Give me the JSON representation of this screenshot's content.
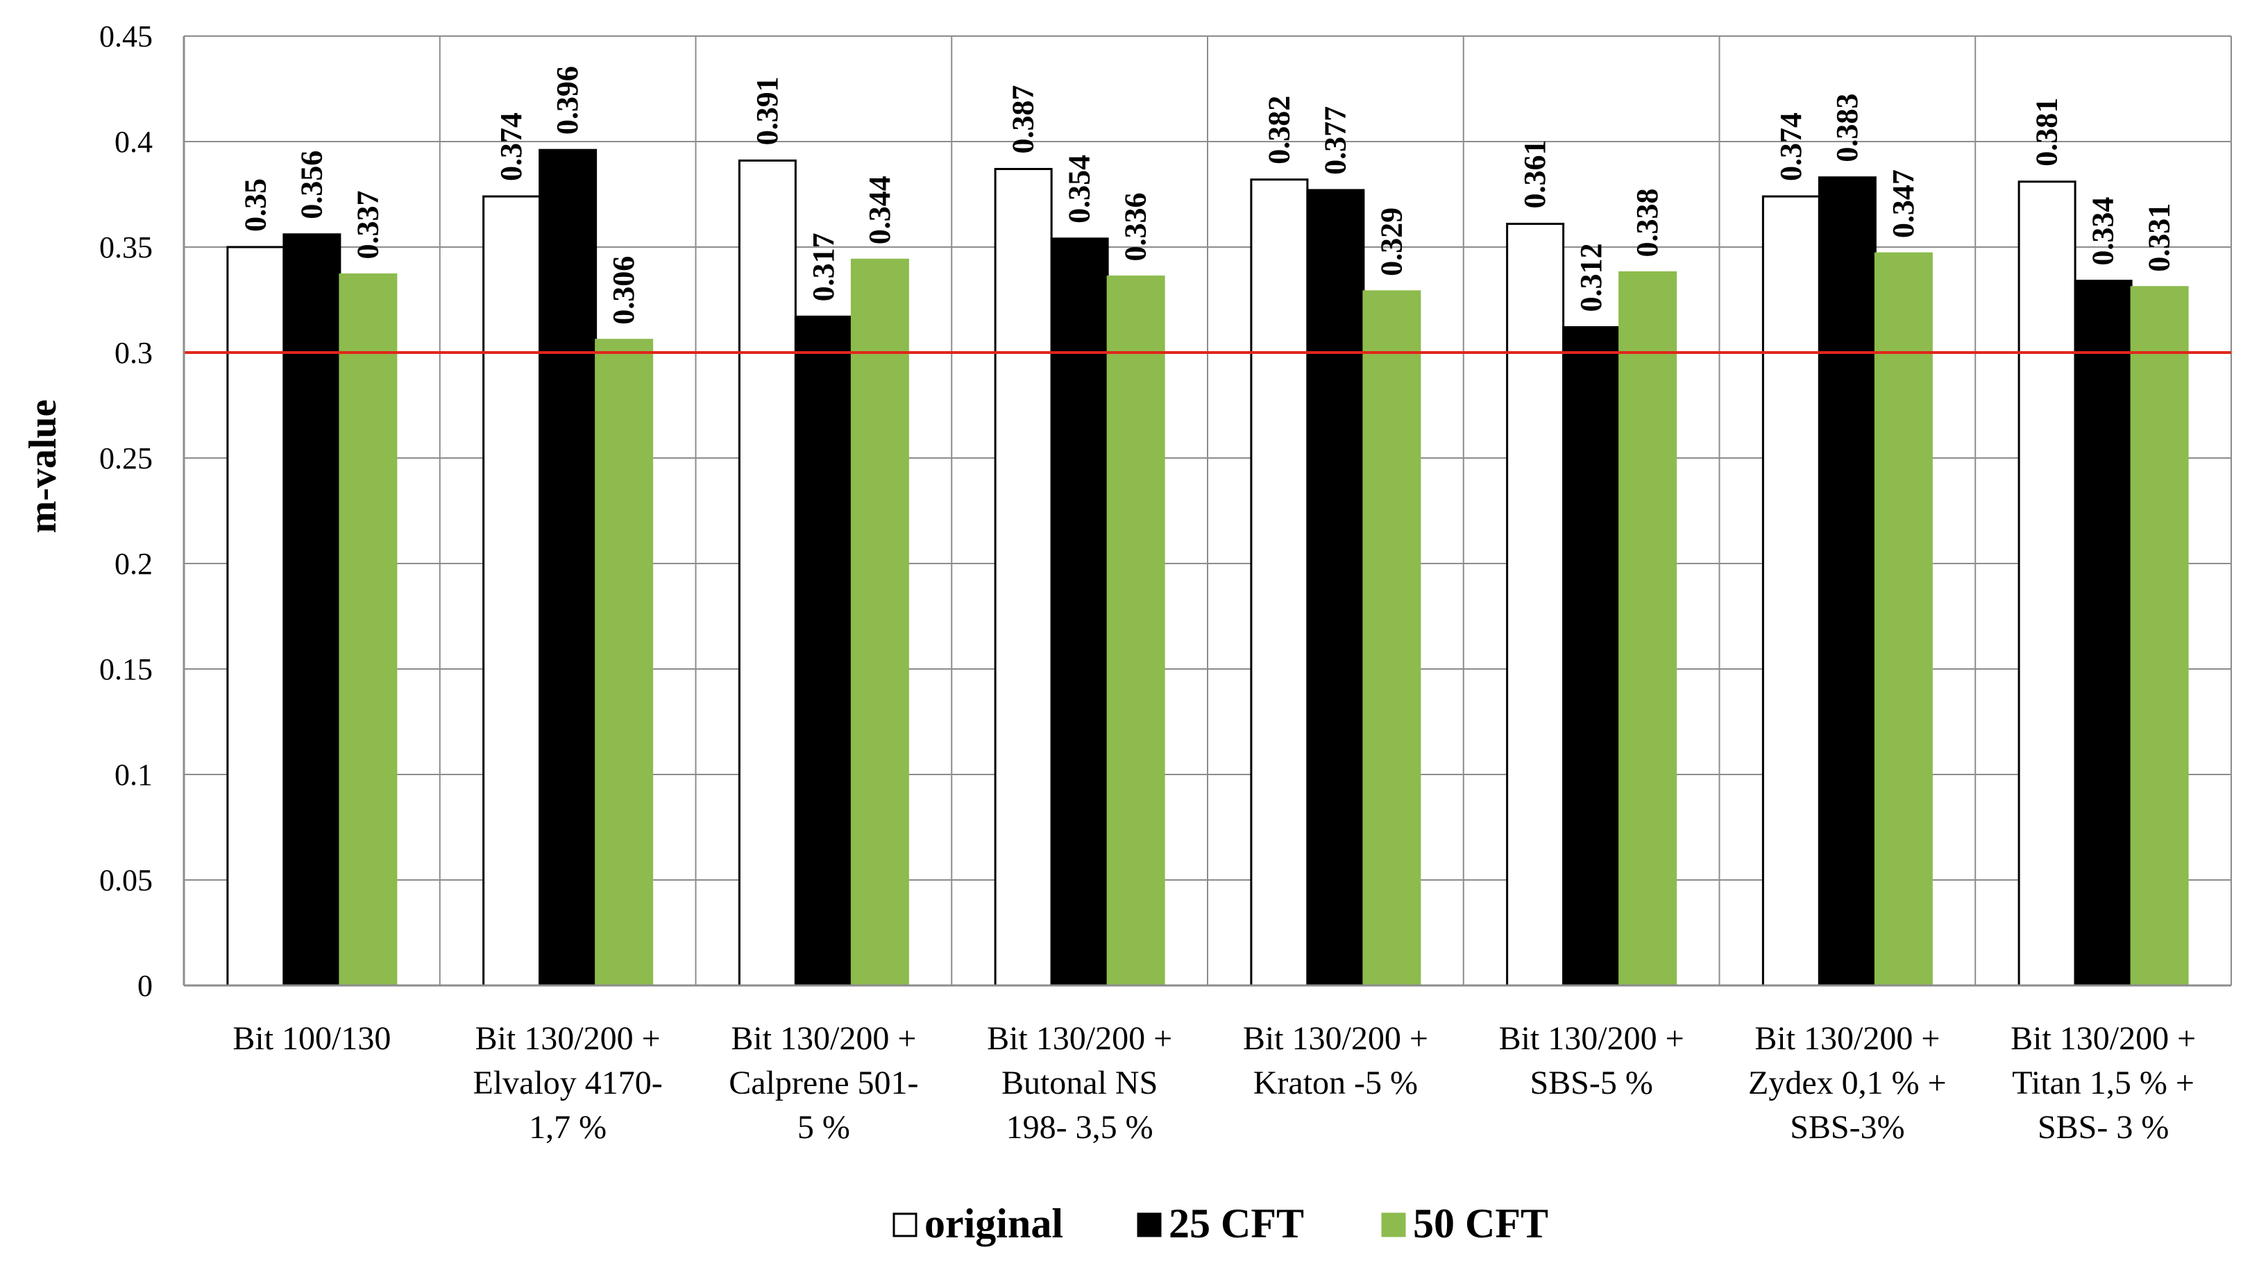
{
  "chart_data": {
    "type": "bar",
    "title": "",
    "xlabel": "",
    "ylabel": "m-value",
    "ylim": [
      0,
      0.45
    ],
    "yticks": [
      "0",
      "0.05",
      "0.1",
      "0.15",
      "0.2",
      "0.25",
      "0.3",
      "0.35",
      "0.4",
      "0.45"
    ],
    "ytick_values": [
      0,
      0.05,
      0.1,
      0.15,
      0.2,
      0.25,
      0.3,
      0.35,
      0.4,
      0.45
    ],
    "grid": true,
    "reference_line": {
      "value": 0.3,
      "color": "#e0261b"
    },
    "categories": [
      [
        "Bit 100/130"
      ],
      [
        "Bit 130/200 +",
        "Elvaloy 4170-",
        "1,7 %"
      ],
      [
        "Bit 130/200 +",
        "Calprene 501-",
        "5 %"
      ],
      [
        "Bit 130/200 +",
        "Butonal NS",
        "198-   3,5 %"
      ],
      [
        "Bit 130/200 +",
        "Kraton -5 %"
      ],
      [
        "Bit 130/200 +",
        "SBS-5 %"
      ],
      [
        "Bit 130/200 +",
        "Zydex 0,1 % +",
        "SBS-3%"
      ],
      [
        "Bit 130/200 +",
        "Titan 1,5 % +",
        "SBS- 3 %"
      ]
    ],
    "series": [
      {
        "name": "original",
        "color": "#ffffff",
        "stroke": "#000000",
        "values": [
          0.35,
          0.374,
          0.391,
          0.387,
          0.382,
          0.361,
          0.374,
          0.381
        ],
        "labels": [
          "0.35",
          "0.374",
          "0.391",
          "0.387",
          "0.382",
          "0.361",
          "0.374",
          "0.381"
        ]
      },
      {
        "name": "25 CFT",
        "color": "#000000",
        "stroke": "#000000",
        "values": [
          0.356,
          0.396,
          0.317,
          0.354,
          0.377,
          0.312,
          0.383,
          0.334
        ],
        "labels": [
          "0.356",
          "0.396",
          "0.317",
          "0.354",
          "0.377",
          "0.312",
          "0.383",
          "0.334"
        ]
      },
      {
        "name": "50 CFT",
        "color": "#8dbb4d",
        "stroke": "#8dbb4d",
        "values": [
          0.337,
          0.306,
          0.344,
          0.336,
          0.329,
          0.338,
          0.347,
          0.331
        ],
        "labels": [
          "0.337",
          "0.306",
          "0.344",
          "0.336",
          "0.329",
          "0.338",
          "0.347",
          "0.331"
        ]
      }
    ],
    "legend": [
      "original",
      "25 CFT",
      "50 CFT"
    ],
    "legend_position": "bottom-center"
  }
}
